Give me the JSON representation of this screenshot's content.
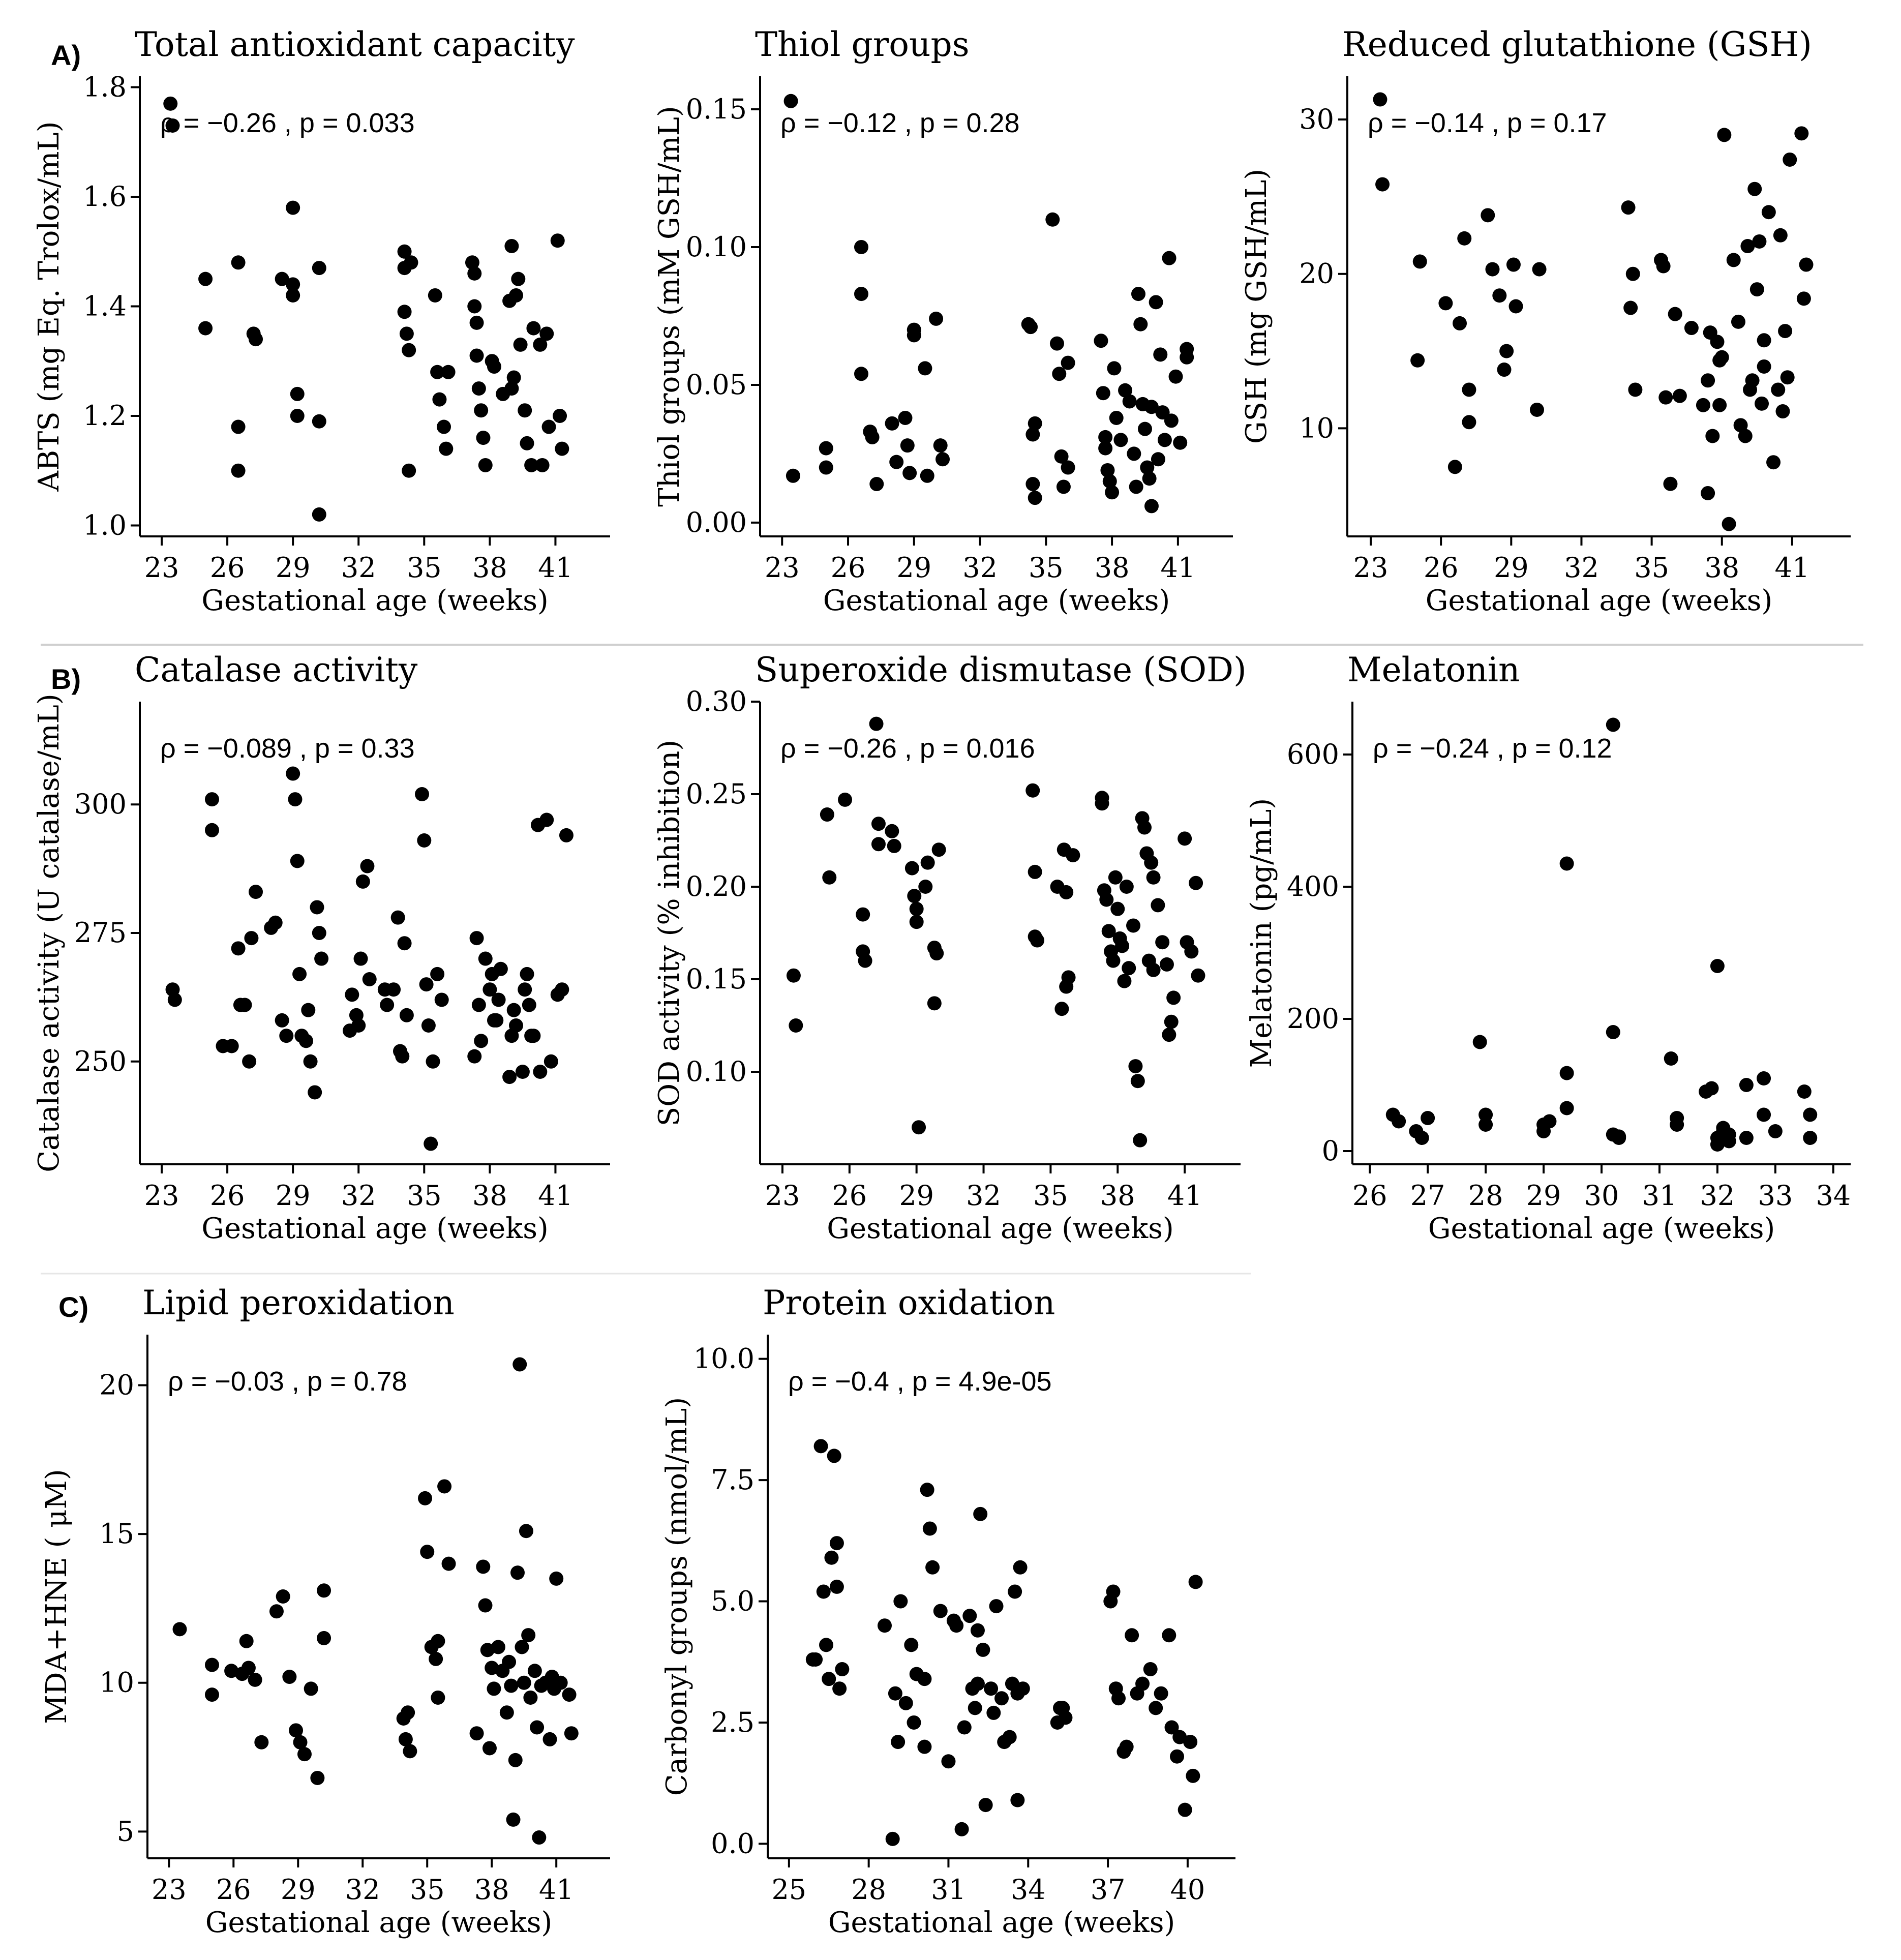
{
  "figure": {
    "panel_letters": [
      "A)",
      "B)",
      "C)"
    ]
  },
  "chart_data": [
    {
      "type": "scatter",
      "panel": "A)",
      "title": "Total antioxidant capacity",
      "xlabel": "Gestational age (weeks)",
      "ylabel": "ABTS (mg Eq. Trolox/mL)",
      "annotation": "ρ = −0.26 , p = 0.033",
      "xlim": [
        22,
        43.5
      ],
      "ylim": [
        0.98,
        1.82
      ],
      "xticks": [
        23,
        26,
        29,
        32,
        35,
        38,
        41
      ],
      "yticks": [
        1.0,
        1.2,
        1.4,
        1.6,
        1.8
      ],
      "ytick_labels": [
        "1.0",
        "1.2",
        "1.4",
        "1.6",
        "1.8"
      ],
      "x": [
        23.4,
        23.5,
        25,
        25,
        26.5,
        26.5,
        26.5,
        27.2,
        27.3,
        28.5,
        29,
        29,
        29,
        29.2,
        29.2,
        30.2,
        30.2,
        30.2,
        34.1,
        34.1,
        34.1,
        34.2,
        34.3,
        34.3,
        34.4,
        35.5,
        35.6,
        35.7,
        35.9,
        36,
        36.1,
        37.2,
        37.3,
        37.3,
        37.4,
        37.4,
        37.5,
        37.6,
        37.7,
        37.8,
        38.1,
        38.2,
        38.6,
        38.9,
        39,
        39,
        39.1,
        39.2,
        39.3,
        39.4,
        39.6,
        39.7,
        39.9,
        40,
        40.3,
        40.4,
        40.6,
        40.7,
        41.1,
        41.2,
        41.3
      ],
      "y": [
        1.77,
        1.73,
        1.45,
        1.36,
        1.48,
        1.18,
        1.1,
        1.35,
        1.34,
        1.45,
        1.44,
        1.42,
        1.58,
        1.24,
        1.2,
        1.47,
        1.19,
        1.02,
        1.5,
        1.47,
        1.39,
        1.35,
        1.32,
        1.1,
        1.48,
        1.42,
        1.28,
        1.23,
        1.18,
        1.14,
        1.28,
        1.48,
        1.46,
        1.4,
        1.37,
        1.31,
        1.25,
        1.21,
        1.16,
        1.11,
        1.3,
        1.29,
        1.24,
        1.41,
        1.51,
        1.25,
        1.27,
        1.42,
        1.45,
        1.33,
        1.21,
        1.15,
        1.11,
        1.36,
        1.33,
        1.11,
        1.35,
        1.18,
        1.52,
        1.2,
        1.14
      ]
    },
    {
      "type": "scatter",
      "panel": "",
      "title": "Thiol groups",
      "xlabel": "Gestational age (weeks)",
      "ylabel": "Thiol groups (mM GSH/mL)",
      "annotation": "ρ = −0.12 , p = 0.28",
      "xlim": [
        22,
        43.5
      ],
      "ylim": [
        -0.005,
        0.162
      ],
      "xticks": [
        23,
        26,
        29,
        32,
        35,
        38,
        41
      ],
      "yticks": [
        0.0,
        0.05,
        0.1,
        0.15
      ],
      "ytick_labels": [
        "0.00",
        "0.05",
        "0.10",
        "0.15"
      ],
      "x": [
        23.4,
        23.5,
        25,
        25,
        26.6,
        26.6,
        26.6,
        27,
        27.1,
        27.3,
        28,
        28.2,
        28.6,
        28.7,
        28.8,
        29,
        29,
        29.5,
        29.6,
        30,
        30.2,
        30.3,
        34.2,
        34.3,
        34.4,
        34.4,
        34.5,
        34.5,
        35.3,
        35.5,
        35.6,
        35.7,
        35.8,
        36,
        36,
        37.5,
        37.6,
        37.7,
        37.7,
        37.8,
        37.9,
        38,
        38.1,
        38.2,
        38.4,
        38.6,
        38.8,
        39,
        39.1,
        39.2,
        39.3,
        39.4,
        39.5,
        39.6,
        39.7,
        39.8,
        39.8,
        40,
        40.1,
        40.2,
        40.3,
        40.4,
        40.6,
        40.7,
        40.9,
        41.1,
        41.4,
        41.4
      ],
      "y": [
        0.153,
        0.017,
        0.027,
        0.02,
        0.1,
        0.083,
        0.054,
        0.033,
        0.031,
        0.014,
        0.036,
        0.022,
        0.038,
        0.028,
        0.018,
        0.07,
        0.068,
        0.056,
        0.017,
        0.074,
        0.028,
        0.023,
        0.072,
        0.071,
        0.032,
        0.014,
        0.009,
        0.036,
        0.11,
        0.065,
        0.054,
        0.024,
        0.013,
        0.058,
        0.02,
        0.066,
        0.047,
        0.031,
        0.027,
        0.019,
        0.015,
        0.011,
        0.056,
        0.038,
        0.03,
        0.048,
        0.044,
        0.025,
        0.013,
        0.083,
        0.072,
        0.043,
        0.034,
        0.02,
        0.016,
        0.042,
        0.006,
        0.08,
        0.023,
        0.061,
        0.04,
        0.03,
        0.096,
        0.037,
        0.053,
        0.029,
        0.063,
        0.06
      ]
    },
    {
      "type": "scatter",
      "panel": "",
      "title": "Reduced glutathione (GSH)",
      "xlabel": "Gestational age (weeks)",
      "ylabel": "GSH (mg GSH/mL)",
      "annotation": "ρ = −0.14 , p = 0.17",
      "xlim": [
        22,
        43.5
      ],
      "ylim": [
        3,
        32.8
      ],
      "xticks": [
        23,
        26,
        29,
        32,
        35,
        38,
        41
      ],
      "yticks": [
        10,
        20,
        30
      ],
      "ytick_labels": [
        "10",
        "20",
        "30"
      ],
      "x": [
        23.4,
        23.5,
        25,
        25.1,
        26.2,
        26.6,
        26.8,
        27,
        27.2,
        27.2,
        28,
        28.2,
        28.5,
        28.7,
        28.8,
        29.1,
        29.2,
        30.1,
        30.2,
        34,
        34.1,
        34.2,
        34.3,
        35.4,
        35.5,
        35.6,
        35.8,
        36,
        36.2,
        36.7,
        37.2,
        37.4,
        37.4,
        37.5,
        37.6,
        37.8,
        37.9,
        37.9,
        38,
        38.1,
        38.3,
        38.5,
        38.7,
        38.8,
        39,
        39.1,
        39.2,
        39.3,
        39.4,
        39.5,
        39.6,
        39.7,
        39.8,
        39.8,
        40,
        40.2,
        40.4,
        40.5,
        40.6,
        40.7,
        40.8,
        40.9,
        41.4,
        41.5,
        41.6
      ],
      "y": [
        31.3,
        25.8,
        14.4,
        20.8,
        18.1,
        7.5,
        16.8,
        22.3,
        10.4,
        12.5,
        23.8,
        20.3,
        18.6,
        13.8,
        15.0,
        20.6,
        17.9,
        11.2,
        20.3,
        24.3,
        17.8,
        20.0,
        12.5,
        20.9,
        20.5,
        12.0,
        6.4,
        17.4,
        12.1,
        16.5,
        11.5,
        5.8,
        13.1,
        16.2,
        9.5,
        15.6,
        11.5,
        14.4,
        14.6,
        29.0,
        3.8,
        20.9,
        16.9,
        10.2,
        9.5,
        21.8,
        12.5,
        13.1,
        25.5,
        19.0,
        22.1,
        11.6,
        14.0,
        15.7,
        24.0,
        7.8,
        12.5,
        22.5,
        11.1,
        16.3,
        13.3,
        27.4,
        29.1,
        18.4,
        20.6
      ]
    },
    {
      "type": "scatter",
      "panel": "B)",
      "title": "Catalase activity",
      "xlabel": "Gestational age (weeks)",
      "ylabel": "Catalase activity (U catalase/mL)",
      "annotation": "ρ = −0.089 , p = 0.33",
      "xlim": [
        22,
        43.5
      ],
      "ylim": [
        230,
        320
      ],
      "xticks": [
        23,
        26,
        29,
        32,
        35,
        38,
        41
      ],
      "yticks": [
        250,
        275,
        300
      ],
      "ytick_labels": [
        "250",
        "275",
        "300"
      ],
      "x": [
        23.5,
        23.6,
        25.3,
        25.3,
        25.8,
        26.2,
        26.5,
        26.6,
        26.8,
        27,
        27.1,
        27.3,
        28,
        28.2,
        28.5,
        28.7,
        29,
        29.1,
        29.2,
        29.3,
        29.4,
        29.6,
        29.7,
        29.8,
        30,
        30.1,
        30.2,
        30.3,
        31.6,
        31.7,
        31.9,
        32,
        32.1,
        32.2,
        32.4,
        32.5,
        33.2,
        33.3,
        33.6,
        33.8,
        33.9,
        34,
        34.1,
        34.2,
        34.9,
        35,
        35.1,
        35.2,
        35.3,
        35.4,
        35.6,
        35.8,
        37.3,
        37.4,
        37.5,
        37.6,
        37.8,
        38,
        38.1,
        38.2,
        38.3,
        38.4,
        38.5,
        38.9,
        39,
        39.1,
        39.2,
        39.5,
        39.6,
        39.7,
        39.8,
        39.9,
        40,
        40.2,
        40.3,
        40.6,
        40.8,
        41.1,
        41.3,
        41.5
      ],
      "y": [
        264,
        262,
        301,
        295,
        253,
        253,
        272,
        261,
        261,
        250,
        274,
        283,
        276,
        277,
        258,
        255,
        306,
        301,
        289,
        267,
        255,
        254,
        260,
        250,
        244,
        280,
        275,
        270,
        256,
        263,
        259,
        257,
        270,
        285,
        288,
        266,
        264,
        261,
        264,
        278,
        252,
        251,
        273,
        259,
        302,
        293,
        265,
        257,
        234,
        250,
        267,
        262,
        251,
        274,
        261,
        254,
        270,
        264,
        267,
        258,
        258,
        262,
        268,
        247,
        255,
        260,
        257,
        248,
        264,
        267,
        261,
        255,
        255,
        296,
        248,
        297,
        250,
        263,
        264,
        294
      ]
    },
    {
      "type": "scatter",
      "panel": "",
      "title": "Superoxide dismutase (SOD)",
      "xlabel": "Gestational age (weeks)",
      "ylabel": "SOD activity (% inhibition)",
      "annotation": "ρ = −0.26 , p = 0.016",
      "xlim": [
        22,
        43.5
      ],
      "ylim": [
        0.05,
        0.3
      ],
      "xticks": [
        23,
        26,
        29,
        32,
        35,
        38,
        41
      ],
      "yticks": [
        0.1,
        0.15,
        0.2,
        0.25,
        0.3
      ],
      "ytick_labels": [
        "0.10",
        "0.15",
        "0.20",
        "0.25",
        "0.30"
      ],
      "x": [
        23.5,
        23.6,
        25,
        25.1,
        25.8,
        26.6,
        26.6,
        26.7,
        27.2,
        27.3,
        27.3,
        27.9,
        28,
        28.8,
        28.9,
        29,
        29,
        29.1,
        29.4,
        29.5,
        29.8,
        29.8,
        29.9,
        30,
        34.2,
        34.3,
        34.3,
        34.4,
        35.3,
        35.5,
        35.6,
        35.7,
        35.7,
        35.8,
        36,
        37.3,
        37.3,
        37.4,
        37.5,
        37.6,
        37.7,
        37.8,
        37.9,
        38,
        38.1,
        38.2,
        38.3,
        38.4,
        38.5,
        38.7,
        38.8,
        38.9,
        39,
        39.1,
        39.2,
        39.3,
        39.4,
        39.5,
        39.6,
        39.6,
        39.8,
        40,
        40.2,
        40.3,
        40.4,
        40.5,
        41,
        41.1,
        41.3,
        41.5,
        41.6
      ],
      "y": [
        0.152,
        0.125,
        0.239,
        0.205,
        0.247,
        0.185,
        0.165,
        0.16,
        0.288,
        0.234,
        0.223,
        0.23,
        0.222,
        0.21,
        0.195,
        0.188,
        0.181,
        0.07,
        0.2,
        0.213,
        0.167,
        0.137,
        0.164,
        0.22,
        0.252,
        0.208,
        0.173,
        0.171,
        0.2,
        0.134,
        0.22,
        0.197,
        0.146,
        0.151,
        0.217,
        0.248,
        0.245,
        0.198,
        0.193,
        0.176,
        0.165,
        0.16,
        0.205,
        0.188,
        0.172,
        0.168,
        0.149,
        0.2,
        0.156,
        0.179,
        0.103,
        0.095,
        0.063,
        0.237,
        0.232,
        0.218,
        0.16,
        0.213,
        0.205,
        0.155,
        0.19,
        0.17,
        0.158,
        0.12,
        0.127,
        0.14,
        0.226,
        0.17,
        0.165,
        0.202,
        0.152
      ]
    },
    {
      "type": "scatter",
      "panel": "",
      "title": "Melatonin",
      "xlabel": "Gestational age (weeks)",
      "ylabel": "Melatonin (pg/mL)",
      "annotation": "ρ = −0.24 , p = 0.12",
      "xlim": [
        25.7,
        34.3
      ],
      "ylim": [
        -20,
        680
      ],
      "xticks": [
        26,
        27,
        28,
        29,
        30,
        31,
        32,
        33,
        34
      ],
      "yticks": [
        0,
        200,
        400,
        600
      ],
      "ytick_labels": [
        "0",
        "200",
        "400",
        "600"
      ],
      "x": [
        26.4,
        26.5,
        26.8,
        26.9,
        27,
        27.9,
        28,
        28,
        29,
        29,
        29.1,
        29.4,
        29.4,
        29.4,
        30.2,
        30.2,
        30.2,
        30.3,
        30.3,
        31.2,
        31.3,
        31.3,
        31.8,
        31.9,
        32,
        32,
        32,
        32.1,
        32.1,
        32.2,
        32.2,
        32.5,
        32.5,
        32.8,
        32.8,
        33,
        33.5,
        33.6,
        33.6
      ],
      "y": [
        55,
        45,
        30,
        20,
        50,
        165,
        55,
        40,
        30,
        40,
        45,
        435,
        118,
        65,
        645,
        180,
        25,
        22,
        20,
        140,
        50,
        40,
        90,
        95,
        280,
        20,
        10,
        35,
        30,
        25,
        15,
        100,
        20,
        110,
        55,
        30,
        90,
        55,
        20
      ]
    },
    {
      "type": "scatter",
      "panel": "C)",
      "title": "Lipid peroxidation",
      "xlabel": "Gestational age (weeks)",
      "ylabel": "MDA+HNE ( μM)",
      "annotation": "ρ = −0.03 , p = 0.78",
      "xlim": [
        22,
        43.5
      ],
      "ylim": [
        4.1,
        21.7
      ],
      "xticks": [
        23,
        26,
        29,
        32,
        35,
        38,
        41
      ],
      "yticks": [
        5,
        10,
        15,
        20
      ],
      "ytick_labels": [
        "5",
        "10",
        "15",
        "20"
      ],
      "x": [
        23.5,
        25,
        25,
        25.9,
        26.4,
        26.6,
        26.7,
        27,
        27.3,
        28,
        28.3,
        28.6,
        28.9,
        29.1,
        29.3,
        29.6,
        29.9,
        30.2,
        30.2,
        33.9,
        34,
        34.1,
        34.2,
        34.9,
        35,
        35.2,
        35.4,
        35.5,
        35.5,
        35.8,
        36,
        37.3,
        37.6,
        37.7,
        37.8,
        37.9,
        38,
        38.1,
        38.3,
        38.5,
        38.7,
        38.8,
        38.9,
        39,
        39.1,
        39.2,
        39.3,
        39.4,
        39.5,
        39.6,
        39.7,
        39.8,
        40,
        40.1,
        40.2,
        40.3,
        40.5,
        40.7,
        40.8,
        40.9,
        41,
        41.2,
        41.6,
        41.7
      ],
      "y": [
        11.8,
        10.6,
        9.6,
        10.4,
        10.3,
        11.4,
        10.5,
        10.1,
        8.0,
        12.4,
        12.9,
        10.2,
        8.4,
        8.0,
        7.6,
        9.8,
        6.8,
        13.1,
        11.5,
        8.8,
        8.1,
        9.0,
        7.7,
        16.2,
        14.4,
        11.2,
        10.8,
        9.5,
        11.4,
        16.6,
        14.0,
        8.3,
        13.9,
        12.6,
        11.1,
        7.8,
        10.5,
        9.8,
        11.2,
        10.4,
        9.0,
        10.7,
        9.9,
        5.4,
        7.4,
        13.7,
        20.7,
        11.2,
        10.0,
        15.1,
        11.6,
        9.5,
        10.4,
        8.5,
        4.8,
        9.9,
        10.0,
        8.1,
        10.2,
        9.8,
        13.5,
        10.0,
        9.6,
        8.3
      ]
    },
    {
      "type": "scatter",
      "panel": "",
      "title": "Protein oxidation",
      "xlabel": "Gestational age (weeks)",
      "ylabel": "Carbonyl groups (nmol/mL)",
      "annotation": "ρ = −0.4 , p = 4.9e-05",
      "xlim": [
        24.2,
        41.8
      ],
      "ylim": [
        -0.3,
        10.5
      ],
      "xticks": [
        25,
        28,
        31,
        34,
        37,
        40
      ],
      "yticks": [
        0.0,
        2.5,
        5.0,
        7.5,
        10.0
      ],
      "ytick_labels": [
        "0.0",
        "2.5",
        "5.0",
        "7.5",
        "10.0"
      ],
      "x": [
        25.9,
        26,
        26.2,
        26.3,
        26.4,
        26.5,
        26.6,
        26.7,
        26.8,
        26.8,
        26.9,
        27,
        28.6,
        28.9,
        29,
        29.1,
        29.2,
        29.4,
        29.6,
        29.7,
        29.8,
        30.1,
        30.1,
        30.2,
        30.3,
        30.4,
        30.7,
        31,
        31.2,
        31.3,
        31.5,
        31.6,
        31.8,
        31.9,
        32,
        32.1,
        32.1,
        32.2,
        32.3,
        32.4,
        32.6,
        32.7,
        32.8,
        33,
        33.1,
        33.3,
        33.4,
        33.5,
        33.6,
        33.6,
        33.7,
        33.8,
        35.1,
        35.2,
        35.3,
        35.4,
        37.1,
        37.2,
        37.3,
        37.4,
        37.6,
        37.7,
        37.9,
        38.1,
        38.3,
        38.6,
        38.8,
        39,
        39.3,
        39.4,
        39.6,
        39.7,
        39.9,
        40.1,
        40.2,
        40.3
      ],
      "y": [
        3.8,
        3.8,
        8.2,
        5.2,
        4.1,
        3.4,
        5.9,
        8.0,
        6.2,
        5.3,
        3.2,
        3.6,
        4.5,
        0.1,
        3.1,
        2.1,
        5.0,
        2.9,
        4.1,
        2.5,
        3.5,
        2.0,
        3.4,
        7.3,
        6.5,
        5.7,
        4.8,
        1.7,
        4.6,
        4.5,
        0.3,
        2.4,
        4.7,
        3.2,
        2.8,
        3.3,
        4.4,
        6.8,
        4.0,
        0.8,
        3.2,
        2.7,
        4.9,
        3.0,
        2.1,
        2.2,
        3.3,
        5.2,
        0.9,
        3.1,
        5.7,
        3.2,
        2.5,
        2.8,
        2.8,
        2.6,
        5.0,
        5.2,
        3.2,
        3.0,
        1.9,
        2.0,
        4.3,
        3.1,
        3.3,
        3.6,
        2.8,
        3.1,
        4.3,
        2.4,
        1.8,
        2.2,
        0.7,
        2.1,
        1.4,
        5.4
      ]
    }
  ]
}
